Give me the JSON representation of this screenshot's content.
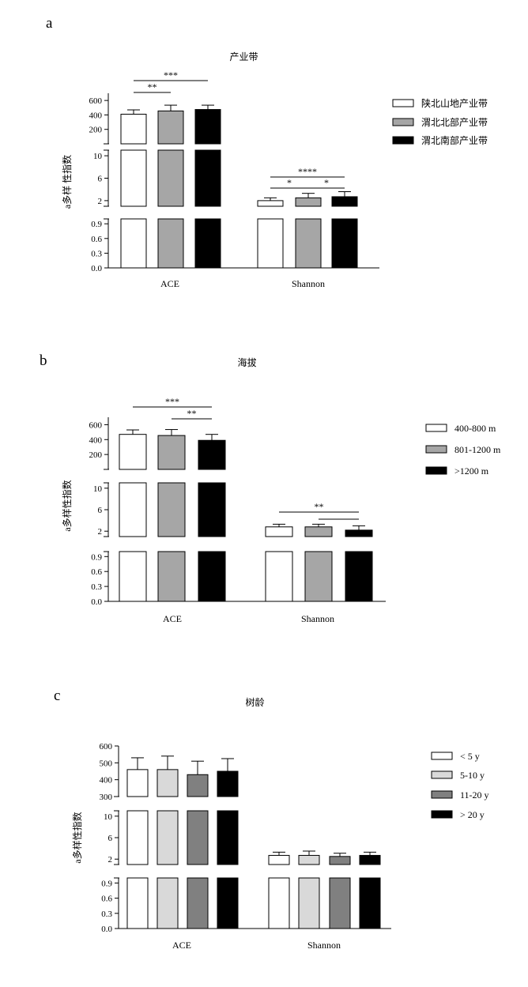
{
  "colors": {
    "white": "#ffffff",
    "light_gray": "#d9d9d9",
    "gray": "#a6a6a6",
    "dark_gray": "#808080",
    "black": "#000000"
  },
  "chart_data": [
    {
      "panel": "a",
      "title": "产业带",
      "type": "bar",
      "ylabel": "a多样 性指数",
      "categories": [
        "ACE",
        "Shannon"
      ],
      "y_axis_segments": [
        {
          "range": [
            0,
            1
          ],
          "ticks": [
            "0.0",
            "0.3",
            "0.6",
            "0.9"
          ]
        },
        {
          "range": [
            1,
            11
          ],
          "ticks": [
            "2",
            "6",
            "10"
          ]
        },
        {
          "range": [
            0,
            700
          ],
          "ticks": [
            "200",
            "400",
            "600"
          ]
        }
      ],
      "series": [
        {
          "name": "陕北山地产业带",
          "color": "white",
          "values": [
            410,
            2.0
          ],
          "errors": [
            60,
            0.5
          ]
        },
        {
          "name": "渭北北部产业带",
          "color": "gray",
          "values": [
            455,
            2.5
          ],
          "errors": [
            80,
            0.8
          ]
        },
        {
          "name": "渭北南部产业带",
          "color": "black",
          "values": [
            475,
            2.7
          ],
          "errors": [
            60,
            0.9
          ]
        }
      ],
      "significance": [
        {
          "category": "ACE",
          "from": 0,
          "to": 2,
          "label": "***"
        },
        {
          "category": "ACE",
          "from": 0,
          "to": 1,
          "label": "**"
        },
        {
          "category": "Shannon",
          "from": 0,
          "to": 2,
          "label": "****"
        },
        {
          "category": "Shannon",
          "from": 0,
          "to": 1,
          "label": "*"
        },
        {
          "category": "Shannon",
          "from": 1,
          "to": 2,
          "label": "*"
        }
      ],
      "legend": "right"
    },
    {
      "panel": "b",
      "title": "海拔",
      "type": "bar",
      "ylabel": "a多样性指数",
      "categories": [
        "ACE",
        "Shannon"
      ],
      "y_axis_segments": [
        {
          "range": [
            0,
            1
          ],
          "ticks": [
            "0.0",
            "0.3",
            "0.6",
            "0.9"
          ]
        },
        {
          "range": [
            1,
            11
          ],
          "ticks": [
            "2",
            "6",
            "10"
          ]
        },
        {
          "range": [
            0,
            700
          ],
          "ticks": [
            "200",
            "400",
            "600"
          ]
        }
      ],
      "series": [
        {
          "name": "400-800 m",
          "color": "white",
          "values": [
            470,
            2.8
          ],
          "errors": [
            60,
            0.5
          ]
        },
        {
          "name": "801-1200 m",
          "color": "gray",
          "values": [
            455,
            2.8
          ],
          "errors": [
            80,
            0.5
          ]
        },
        {
          "name": ">1200 m",
          "color": "black",
          "values": [
            390,
            2.2
          ],
          "errors": [
            80,
            0.8
          ]
        }
      ],
      "significance": [
        {
          "category": "ACE",
          "from": 0,
          "to": 2,
          "label": "***"
        },
        {
          "category": "ACE",
          "from": 1,
          "to": 2,
          "label": "**"
        },
        {
          "category": "Shannon",
          "from": 0,
          "to": 2,
          "label": "**"
        },
        {
          "category": "Shannon",
          "from": 1,
          "to": 2,
          "label": ""
        }
      ],
      "legend": "right"
    },
    {
      "panel": "c",
      "title": "树龄",
      "type": "bar",
      "ylabel": "a多样性指数",
      "categories": [
        "ACE",
        "Shannon"
      ],
      "y_axis_segments": [
        {
          "range": [
            0,
            1
          ],
          "ticks": [
            "0.0",
            "0.3",
            "0.6",
            "0.9"
          ]
        },
        {
          "range": [
            1,
            11
          ],
          "ticks": [
            "2",
            "6",
            "10"
          ]
        },
        {
          "range": [
            300,
            600
          ],
          "ticks": [
            "300",
            "400",
            "500",
            "600"
          ]
        }
      ],
      "series": [
        {
          "name": "< 5 y",
          "color": "white",
          "values": [
            460,
            2.7
          ],
          "errors": [
            70,
            0.6
          ]
        },
        {
          "name": "5-10 y",
          "color": "light_gray",
          "values": [
            460,
            2.7
          ],
          "errors": [
            80,
            0.8
          ]
        },
        {
          "name": "11-20 y",
          "color": "dark_gray",
          "values": [
            430,
            2.5
          ],
          "errors": [
            80,
            0.6
          ]
        },
        {
          "name": "> 20 y",
          "color": "black",
          "values": [
            450,
            2.7
          ],
          "errors": [
            75,
            0.6
          ]
        }
      ],
      "significance": [],
      "legend": "right"
    }
  ]
}
